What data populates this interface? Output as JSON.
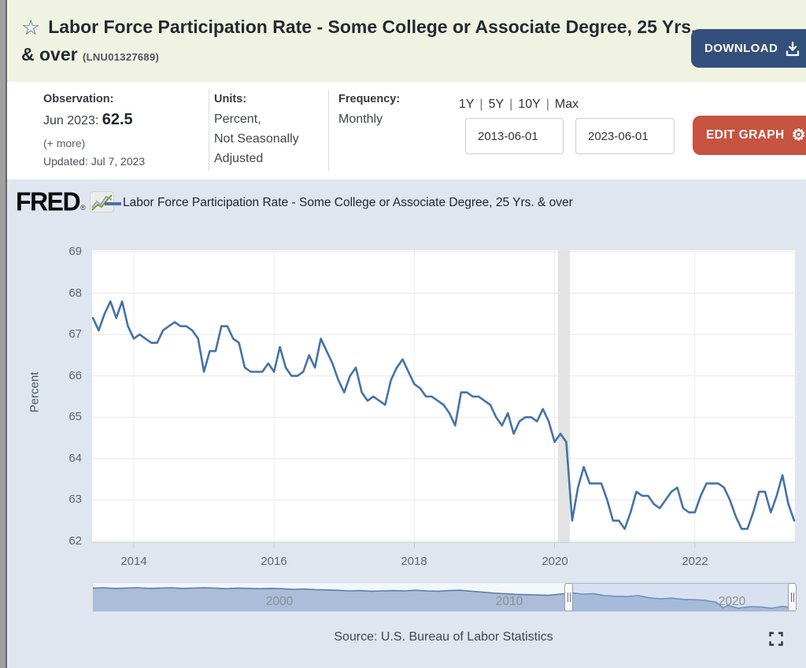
{
  "header": {
    "title": "Labor Force Participation Rate - Some College or Associate Degree, 25 Yrs. & over",
    "series_id": "(LNU01327689)",
    "download_label": "DOWNLOAD"
  },
  "info": {
    "observation": {
      "label": "Observation:",
      "date": "Jun 2023:",
      "value": "62.5",
      "more": "(+ more)",
      "updated": "Updated: Jul 7, 2023"
    },
    "units": {
      "label": "Units:",
      "lines": [
        "Percent,",
        "Not Seasonally",
        "Adjusted"
      ]
    },
    "frequency": {
      "label": "Frequency:",
      "value": "Monthly"
    },
    "ranges": [
      "1Y",
      "5Y",
      "10Y",
      "Max"
    ],
    "ranges_separator": "|",
    "dates": {
      "start": "2013-06-01",
      "end": "2023-06-01"
    },
    "edit_graph_label": "EDIT GRAPH"
  },
  "chart": {
    "logo_text": "FRED",
    "logo_reg": "®",
    "legend_label": "Labor Force Participation Rate - Some College or Associate Degree, 25 Yrs. & over",
    "source": "Source: U.S. Bureau of Labor Statistics"
  },
  "colors": {
    "line": "#4572a7",
    "recession_band": "#e3e3e3",
    "header_bg": "#f1f3e2",
    "chart_bg": "#dfe6ef",
    "download_button": "#334f7c",
    "edit_button": "#c75341",
    "slider_fill": "#9db3d1",
    "slider_line": "#5d7fad"
  },
  "chart_data": {
    "type": "line",
    "title": "Labor Force Participation Rate - Some College or Associate Degree, 25 Yrs. & over",
    "ylabel": "Percent",
    "ylim": [
      62,
      69
    ],
    "yticks": [
      62,
      63,
      64,
      65,
      66,
      67,
      68,
      69
    ],
    "x_start": "2013-06",
    "x_end": "2023-06",
    "frequency": "monthly",
    "grid": true,
    "legend_position": "top",
    "xticks": [
      {
        "label": "2014",
        "month_index": 7
      },
      {
        "label": "2016",
        "month_index": 31
      },
      {
        "label": "2018",
        "month_index": 55
      },
      {
        "label": "2020",
        "month_index": 79
      },
      {
        "label": "2022",
        "month_index": 103
      }
    ],
    "recession_band": {
      "start_month_index": 79.6,
      "end_month_index": 81.6
    },
    "series": [
      {
        "name": "Labor Force Participation Rate - Some College or Associate Degree, 25 Yrs. & over",
        "start_date": "2013-06",
        "values": [
          67.4,
          67.1,
          67.5,
          67.8,
          67.4,
          67.8,
          67.2,
          66.9,
          67.0,
          66.9,
          66.8,
          66.8,
          67.1,
          67.2,
          67.3,
          67.2,
          67.2,
          67.1,
          66.9,
          66.1,
          66.6,
          66.6,
          67.2,
          67.2,
          66.9,
          66.8,
          66.2,
          66.1,
          66.1,
          66.1,
          66.3,
          66.1,
          66.7,
          66.2,
          66.0,
          66.0,
          66.1,
          66.5,
          66.2,
          66.9,
          66.6,
          66.3,
          65.9,
          65.6,
          66.0,
          66.2,
          65.6,
          65.4,
          65.5,
          65.4,
          65.3,
          65.9,
          66.2,
          66.4,
          66.1,
          65.8,
          65.7,
          65.5,
          65.5,
          65.4,
          65.3,
          65.1,
          64.8,
          65.6,
          65.6,
          65.5,
          65.5,
          65.4,
          65.3,
          65.0,
          64.8,
          65.1,
          64.6,
          64.9,
          65.0,
          65.0,
          64.9,
          65.2,
          64.9,
          64.4,
          64.6,
          64.4,
          62.5,
          63.3,
          63.8,
          63.4,
          63.4,
          63.4,
          63.0,
          62.5,
          62.5,
          62.3,
          62.7,
          63.2,
          63.1,
          63.1,
          62.9,
          62.8,
          63.0,
          63.2,
          63.3,
          62.8,
          62.7,
          62.7,
          63.1,
          63.4,
          63.4,
          63.4,
          63.3,
          63.0,
          62.6,
          62.3,
          62.3,
          62.7,
          63.2,
          63.2,
          62.7,
          63.1,
          63.6,
          62.9,
          62.5
        ]
      }
    ],
    "slider": {
      "x_range": [
        1992,
        2023.5
      ],
      "value_range": [
        62,
        69.5
      ],
      "labels": [
        {
          "text": "2000",
          "frac": 0.266
        },
        {
          "text": "2010",
          "frac": 0.594
        },
        {
          "text": "2020",
          "frac": 0.911
        }
      ],
      "selection_frac": [
        0.678,
        0.997
      ],
      "series": [
        [
          1992,
          68.9
        ],
        [
          1992.5,
          69.0
        ],
        [
          1993,
          68.8
        ],
        [
          1993.5,
          68.9
        ],
        [
          1994,
          69.0
        ],
        [
          1994.5,
          68.8
        ],
        [
          1995,
          68.9
        ],
        [
          1995.5,
          69.0
        ],
        [
          1996,
          68.8
        ],
        [
          1996.5,
          68.9
        ],
        [
          1997,
          69.0
        ],
        [
          1997.5,
          68.9
        ],
        [
          1998,
          68.7
        ],
        [
          1998.5,
          68.9
        ],
        [
          1999,
          68.8
        ],
        [
          1999.5,
          68.7
        ],
        [
          2000,
          68.8
        ],
        [
          2000.5,
          68.7
        ],
        [
          2001,
          68.5
        ],
        [
          2001.5,
          68.6
        ],
        [
          2002,
          68.4
        ],
        [
          2002.5,
          68.3
        ],
        [
          2003,
          68.2
        ],
        [
          2003.5,
          68.0
        ],
        [
          2004,
          68.1
        ],
        [
          2004.5,
          67.9
        ],
        [
          2005,
          68.0
        ],
        [
          2005.5,
          68.1
        ],
        [
          2006,
          68.0
        ],
        [
          2006.5,
          68.2
        ],
        [
          2007,
          68.0
        ],
        [
          2007.5,
          67.9
        ],
        [
          2008,
          68.1
        ],
        [
          2008.5,
          68.2
        ],
        [
          2009,
          67.9
        ],
        [
          2009.5,
          67.6
        ],
        [
          2010,
          67.3
        ],
        [
          2010.5,
          67.1
        ],
        [
          2011,
          66.9
        ],
        [
          2011.5,
          66.8
        ],
        [
          2012,
          66.7
        ],
        [
          2012.5,
          66.6
        ],
        [
          2013,
          67.0
        ],
        [
          2013.5,
          67.4
        ],
        [
          2014,
          67.0
        ],
        [
          2014.5,
          67.1
        ],
        [
          2015,
          66.5
        ],
        [
          2015.5,
          66.3
        ],
        [
          2016,
          66.2
        ],
        [
          2016.5,
          66.5
        ],
        [
          2017,
          65.8
        ],
        [
          2017.5,
          65.5
        ],
        [
          2018,
          65.7
        ],
        [
          2018.5,
          65.3
        ],
        [
          2019,
          65.2
        ],
        [
          2019.5,
          65.0
        ],
        [
          2020,
          64.4
        ],
        [
          2020.3,
          62.6
        ],
        [
          2020.5,
          63.4
        ],
        [
          2021,
          62.5
        ],
        [
          2021.5,
          63.0
        ],
        [
          2022,
          62.9
        ],
        [
          2022.5,
          62.5
        ],
        [
          2023,
          63.1
        ],
        [
          2023.45,
          62.5
        ]
      ]
    }
  }
}
